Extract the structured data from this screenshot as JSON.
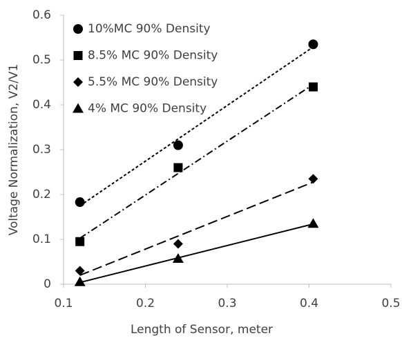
{
  "chart_data": {
    "type": "scatter",
    "xlabel": "Length of Sensor, meter",
    "ylabel": "Voltage Normalization, V2/V1",
    "x": [
      0.12,
      0.24,
      0.405
    ],
    "series": [
      {
        "name": "10%MC 90% Density",
        "color": "#000000",
        "marker": "circle",
        "trendline": "dotted",
        "values": [
          0.183,
          0.31,
          0.535
        ]
      },
      {
        "name": "8.5% MC 90% Density",
        "color": "#000000",
        "marker": "square",
        "trendline": "dash-dot",
        "values": [
          0.095,
          0.26,
          0.44
        ]
      },
      {
        "name": "5.5% MC 90% Density",
        "color": "#000000",
        "marker": "diamond",
        "trendline": "dashed",
        "values": [
          0.03,
          0.09,
          0.235
        ]
      },
      {
        "name": "4% MC 90% Density",
        "color": "#000000",
        "marker": "triangle",
        "trendline": "solid",
        "values": [
          0.005,
          0.057,
          0.135
        ]
      }
    ],
    "xlim": [
      0.1,
      0.5
    ],
    "xticks": [
      0.1,
      0.2,
      0.3,
      0.4,
      0.5
    ],
    "ylim": [
      0,
      0.6
    ],
    "yticks": [
      0,
      0.1,
      0.2,
      0.3,
      0.4,
      0.5,
      0.6
    ],
    "grid": false,
    "legend": "upper left"
  }
}
